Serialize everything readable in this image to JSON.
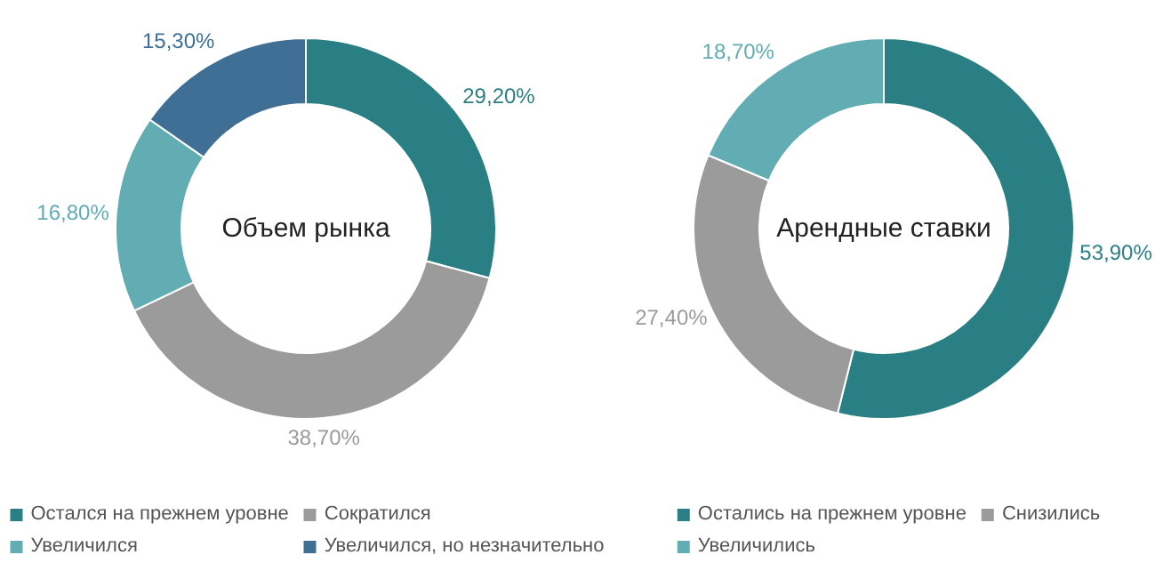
{
  "chart_data": [
    {
      "type": "donut",
      "title": "Объем рынка",
      "categories": [
        "Остался на прежнем уровне",
        "Сократился",
        "Увеличился",
        "Увеличился, но незначительно"
      ],
      "values": [
        29.2,
        38.7,
        16.8,
        15.3
      ],
      "colors": [
        "#2a7f84",
        "#9b9b9b",
        "#62adb4",
        "#3f6f95"
      ],
      "value_labels": [
        "29,20%",
        "38,70%",
        "16,80%",
        "15,30%"
      ],
      "legend": "bottom"
    },
    {
      "type": "donut",
      "title": "Арендные ставки",
      "categories": [
        "Остались на прежнем уровне",
        "Снизились",
        "Увеличились"
      ],
      "values": [
        53.9,
        27.4,
        18.7
      ],
      "colors": [
        "#2a7f84",
        "#9b9b9b",
        "#62adb4"
      ],
      "value_labels": [
        "53,90%",
        "27,40%",
        "18,70%"
      ],
      "legend": "bottom"
    }
  ]
}
